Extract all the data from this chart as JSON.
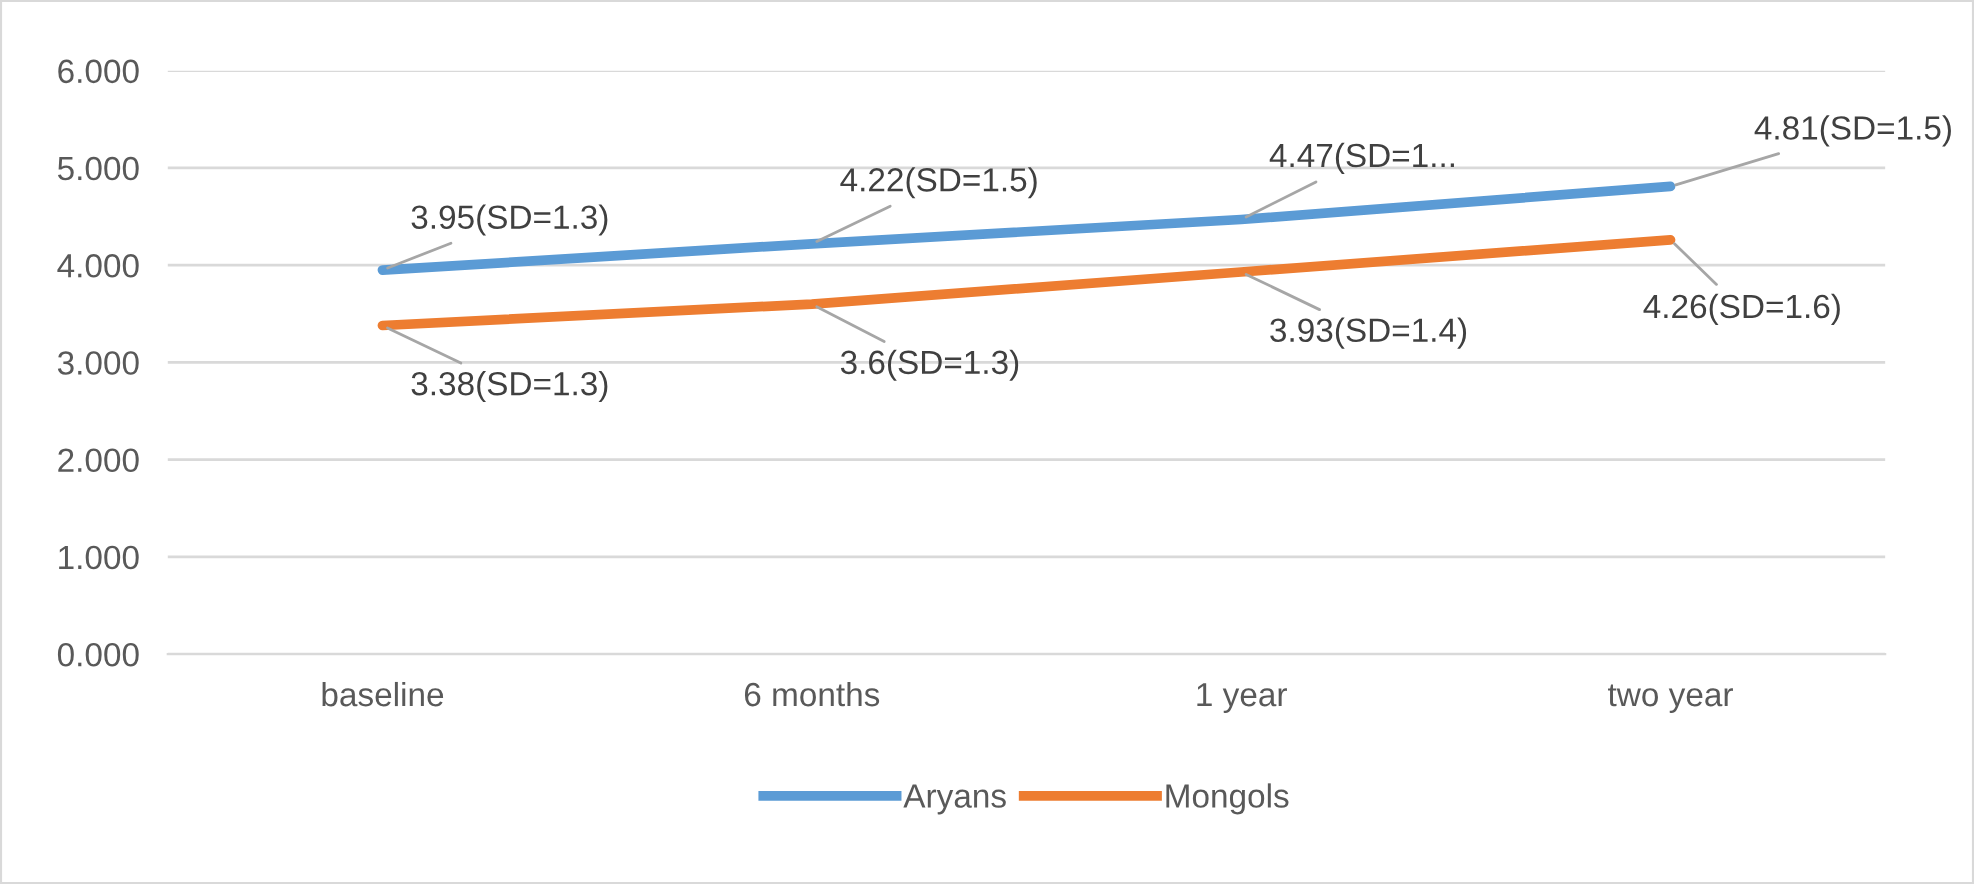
{
  "chart_data": {
    "type": "line",
    "categories": [
      "baseline",
      "6 months",
      "1 year",
      "two year"
    ],
    "series": [
      {
        "name": "Aryans",
        "color": "#5b9bd5",
        "values": [
          3.95,
          4.22,
          4.47,
          4.81
        ],
        "value_labels": [
          "3.95(SD=1.3)",
          "4.22(SD=1.5)",
          "4.47(SD=1...",
          "4.81(SD=1.5)"
        ]
      },
      {
        "name": "Mongols",
        "color": "#ed7d31",
        "values": [
          3.38,
          3.6,
          3.93,
          4.26
        ],
        "value_labels": [
          "3.38(SD=1.3)",
          "3.6(SD=1.3)",
          "3.93(SD=1.4)",
          "4.26(SD=1.6)"
        ]
      }
    ],
    "ylim": [
      0,
      6
    ],
    "yticks": [
      {
        "value": 0,
        "label": "0.000"
      },
      {
        "value": 1,
        "label": "1.000"
      },
      {
        "value": 2,
        "label": "2.000"
      },
      {
        "value": 3,
        "label": "3.000"
      },
      {
        "value": 4,
        "label": "4.000"
      },
      {
        "value": 5,
        "label": "5.000"
      },
      {
        "value": 6,
        "label": "6.000"
      }
    ],
    "grid": "y",
    "legend": "bottom",
    "marker": "none",
    "line_style": "solid"
  }
}
